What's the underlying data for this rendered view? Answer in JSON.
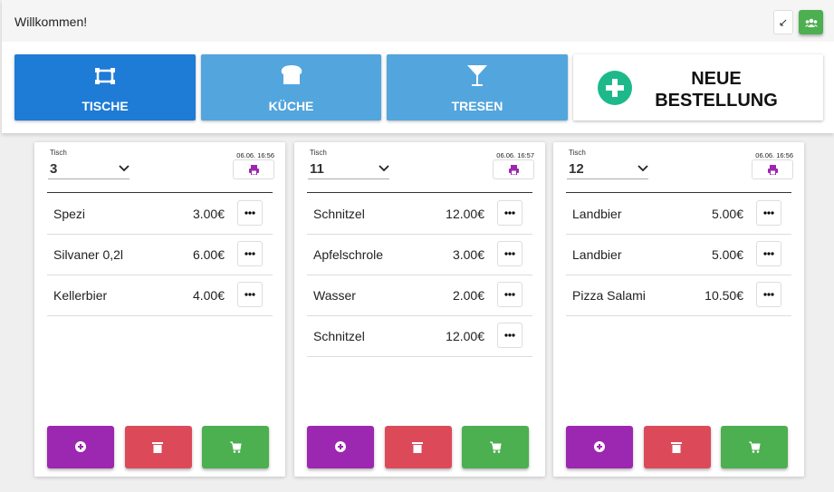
{
  "header": {
    "title": "Willkommen!"
  },
  "nav": [
    {
      "label": "TISCHE"
    },
    {
      "label": "KÜCHE"
    },
    {
      "label": "TRESEN"
    },
    {
      "label": "NEUE BESTELLUNG"
    }
  ],
  "orders": [
    {
      "table_label": "Tisch",
      "table": "3",
      "time": "06.06. 16:56",
      "items": [
        {
          "name": "Spezi",
          "price": "3.00€"
        },
        {
          "name": "Silvaner 0,2l",
          "price": "6.00€"
        },
        {
          "name": "Kellerbier",
          "price": "4.00€"
        }
      ]
    },
    {
      "table_label": "Tisch",
      "table": "11",
      "time": "06.06. 16:57",
      "items": [
        {
          "name": "Schnitzel",
          "price": "12.00€"
        },
        {
          "name": "Apfelschrole",
          "price": "3.00€"
        },
        {
          "name": "Wasser",
          "price": "2.00€"
        },
        {
          "name": "Schnitzel",
          "price": "12.00€"
        }
      ]
    },
    {
      "table_label": "Tisch",
      "table": "12",
      "time": "06.06. 16:56",
      "items": [
        {
          "name": "Landbier",
          "price": "5.00€"
        },
        {
          "name": "Landbier",
          "price": "5.00€"
        },
        {
          "name": "Pizza Salami",
          "price": "10.50€"
        }
      ]
    }
  ]
}
